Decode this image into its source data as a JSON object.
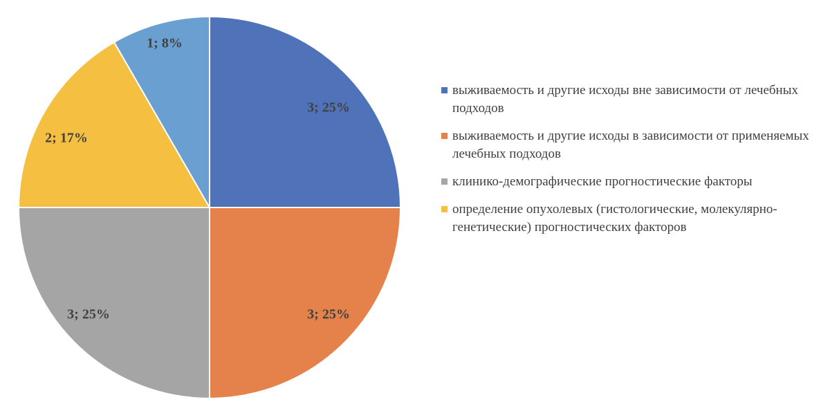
{
  "chart_data": {
    "type": "pie",
    "title": "",
    "slices": [
      {
        "name": "выживаемость и другие исходы вне зависимости от лечебных подходов",
        "value": 3,
        "percent": 25,
        "label": "3; 25%",
        "color": "#4f72b8"
      },
      {
        "name": "выживаемость и другие исходы в зависимости от применяемых лечебных подходов",
        "value": 3,
        "percent": 25,
        "label": "3; 25%",
        "color": "#e5814a"
      },
      {
        "name": "клинико-демографические прогностические факторы",
        "value": 3,
        "percent": 25,
        "label": "3; 25%",
        "color": "#a5a5a5"
      },
      {
        "name": "определение опухолевых (гистологические, молекулярно-генетические) прогностических факторов",
        "value": 2,
        "percent": 17,
        "label": "2; 17%",
        "color": "#f5bf41"
      },
      {
        "name": "",
        "value": 1,
        "percent": 8,
        "label": "1; 8%",
        "color": "#6a9fd2"
      }
    ],
    "legend_position": "right",
    "start_angle": "top, clockwise"
  }
}
